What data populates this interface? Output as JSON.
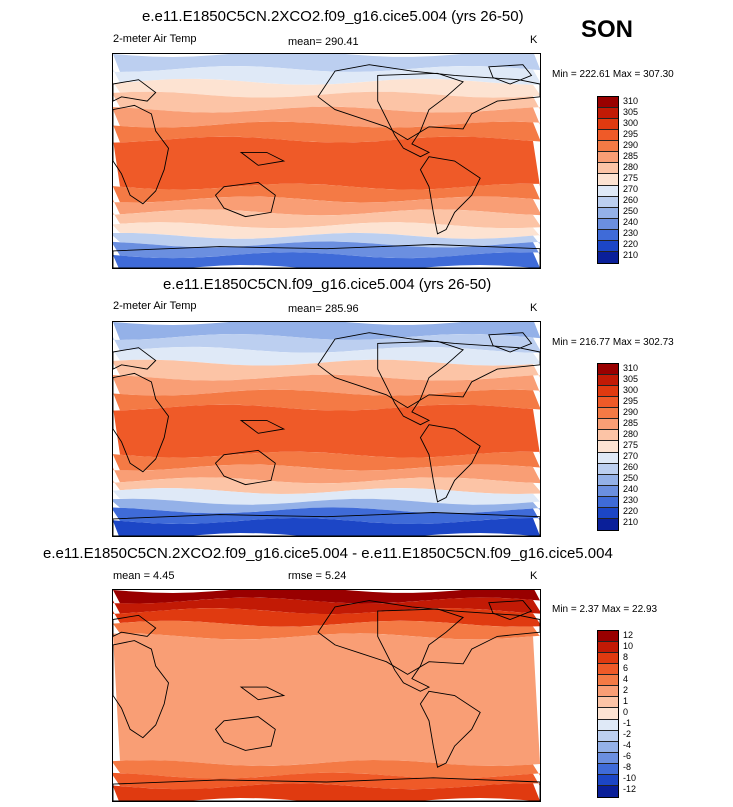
{
  "season": "SON",
  "panels": [
    {
      "title": "e.e11.E1850C5CN.2XCO2.f09_g16.cice5.004 (yrs 26-50)",
      "left_label": "2-meter Air Temp",
      "mean_text": "mean= 290.41",
      "rmse_text": "",
      "units": "K",
      "minmax": "Min = 222.61 Max = 307.30"
    },
    {
      "title": "e.e11.E1850C5CN.f09_g16.cice5.004 (yrs 26-50)",
      "left_label": "2-meter Air Temp",
      "mean_text": "mean= 285.96",
      "rmse_text": "",
      "units": "K",
      "minmax": "Min = 216.77 Max = 302.73"
    },
    {
      "title": "e.e11.E1850C5CN.2XCO2.f09_g16.cice5.004 - e.e11.E1850C5CN.f09_g16.cice5.004",
      "left_label": "mean =   4.45",
      "mean_text": "",
      "rmse_text": "rmse =   5.24",
      "units": "K",
      "minmax": "Min =  2.37 Max = 22.93"
    }
  ],
  "chart_data": [
    {
      "type": "heatmap",
      "title": "e.e11.E1850C5CN.2XCO2.f09_g16.cice5.004 (yrs 26-50)",
      "variable": "2-meter Air Temp",
      "units": "K",
      "mean": 290.41,
      "min": 222.61,
      "max": 307.3,
      "colorbar_levels": [
        "310",
        "305",
        "300",
        "295",
        "290",
        "285",
        "280",
        "275",
        "270",
        "260",
        "250",
        "240",
        "230",
        "220",
        "210"
      ],
      "colorbar_colors": [
        "#990000",
        "#c21a05",
        "#e03a10",
        "#ef5a28",
        "#f47a45",
        "#f99e75",
        "#fcc4a6",
        "#fde3d2",
        "#dfe9f7",
        "#bccff0",
        "#94b1e8",
        "#6b8fe0",
        "#3f6bd8",
        "#1c46c6",
        "#0a1f99"
      ]
    },
    {
      "type": "heatmap",
      "title": "e.e11.E1850C5CN.f09_g16.cice5.004 (yrs 26-50)",
      "variable": "2-meter Air Temp",
      "units": "K",
      "mean": 285.96,
      "min": 216.77,
      "max": 302.73,
      "colorbar_levels": [
        "310",
        "305",
        "300",
        "295",
        "290",
        "285",
        "280",
        "275",
        "270",
        "260",
        "250",
        "240",
        "230",
        "220",
        "210"
      ],
      "colorbar_colors": [
        "#990000",
        "#c21a05",
        "#e03a10",
        "#ef5a28",
        "#f47a45",
        "#f99e75",
        "#fcc4a6",
        "#fde3d2",
        "#dfe9f7",
        "#bccff0",
        "#94b1e8",
        "#6b8fe0",
        "#3f6bd8",
        "#1c46c6",
        "#0a1f99"
      ]
    },
    {
      "type": "heatmap",
      "title": "e.e11.E1850C5CN.2XCO2.f09_g16.cice5.004 - e.e11.E1850C5CN.f09_g16.cice5.004",
      "units": "K",
      "mean": 4.45,
      "rmse": 5.24,
      "min": 2.37,
      "max": 22.93,
      "colorbar_levels": [
        "12",
        "10",
        "8",
        "6",
        "4",
        "2",
        "1",
        "0",
        "-1",
        "-2",
        "-4",
        "-6",
        "-8",
        "-10",
        "-12"
      ],
      "colorbar_colors": [
        "#990000",
        "#c21a05",
        "#e03a10",
        "#ef5a28",
        "#f47a45",
        "#f99e75",
        "#fcc4a6",
        "#fde3d2",
        "#dfe9f7",
        "#bccff0",
        "#94b1e8",
        "#6b8fe0",
        "#3f6bd8",
        "#1c46c6",
        "#0a1f99"
      ]
    }
  ]
}
